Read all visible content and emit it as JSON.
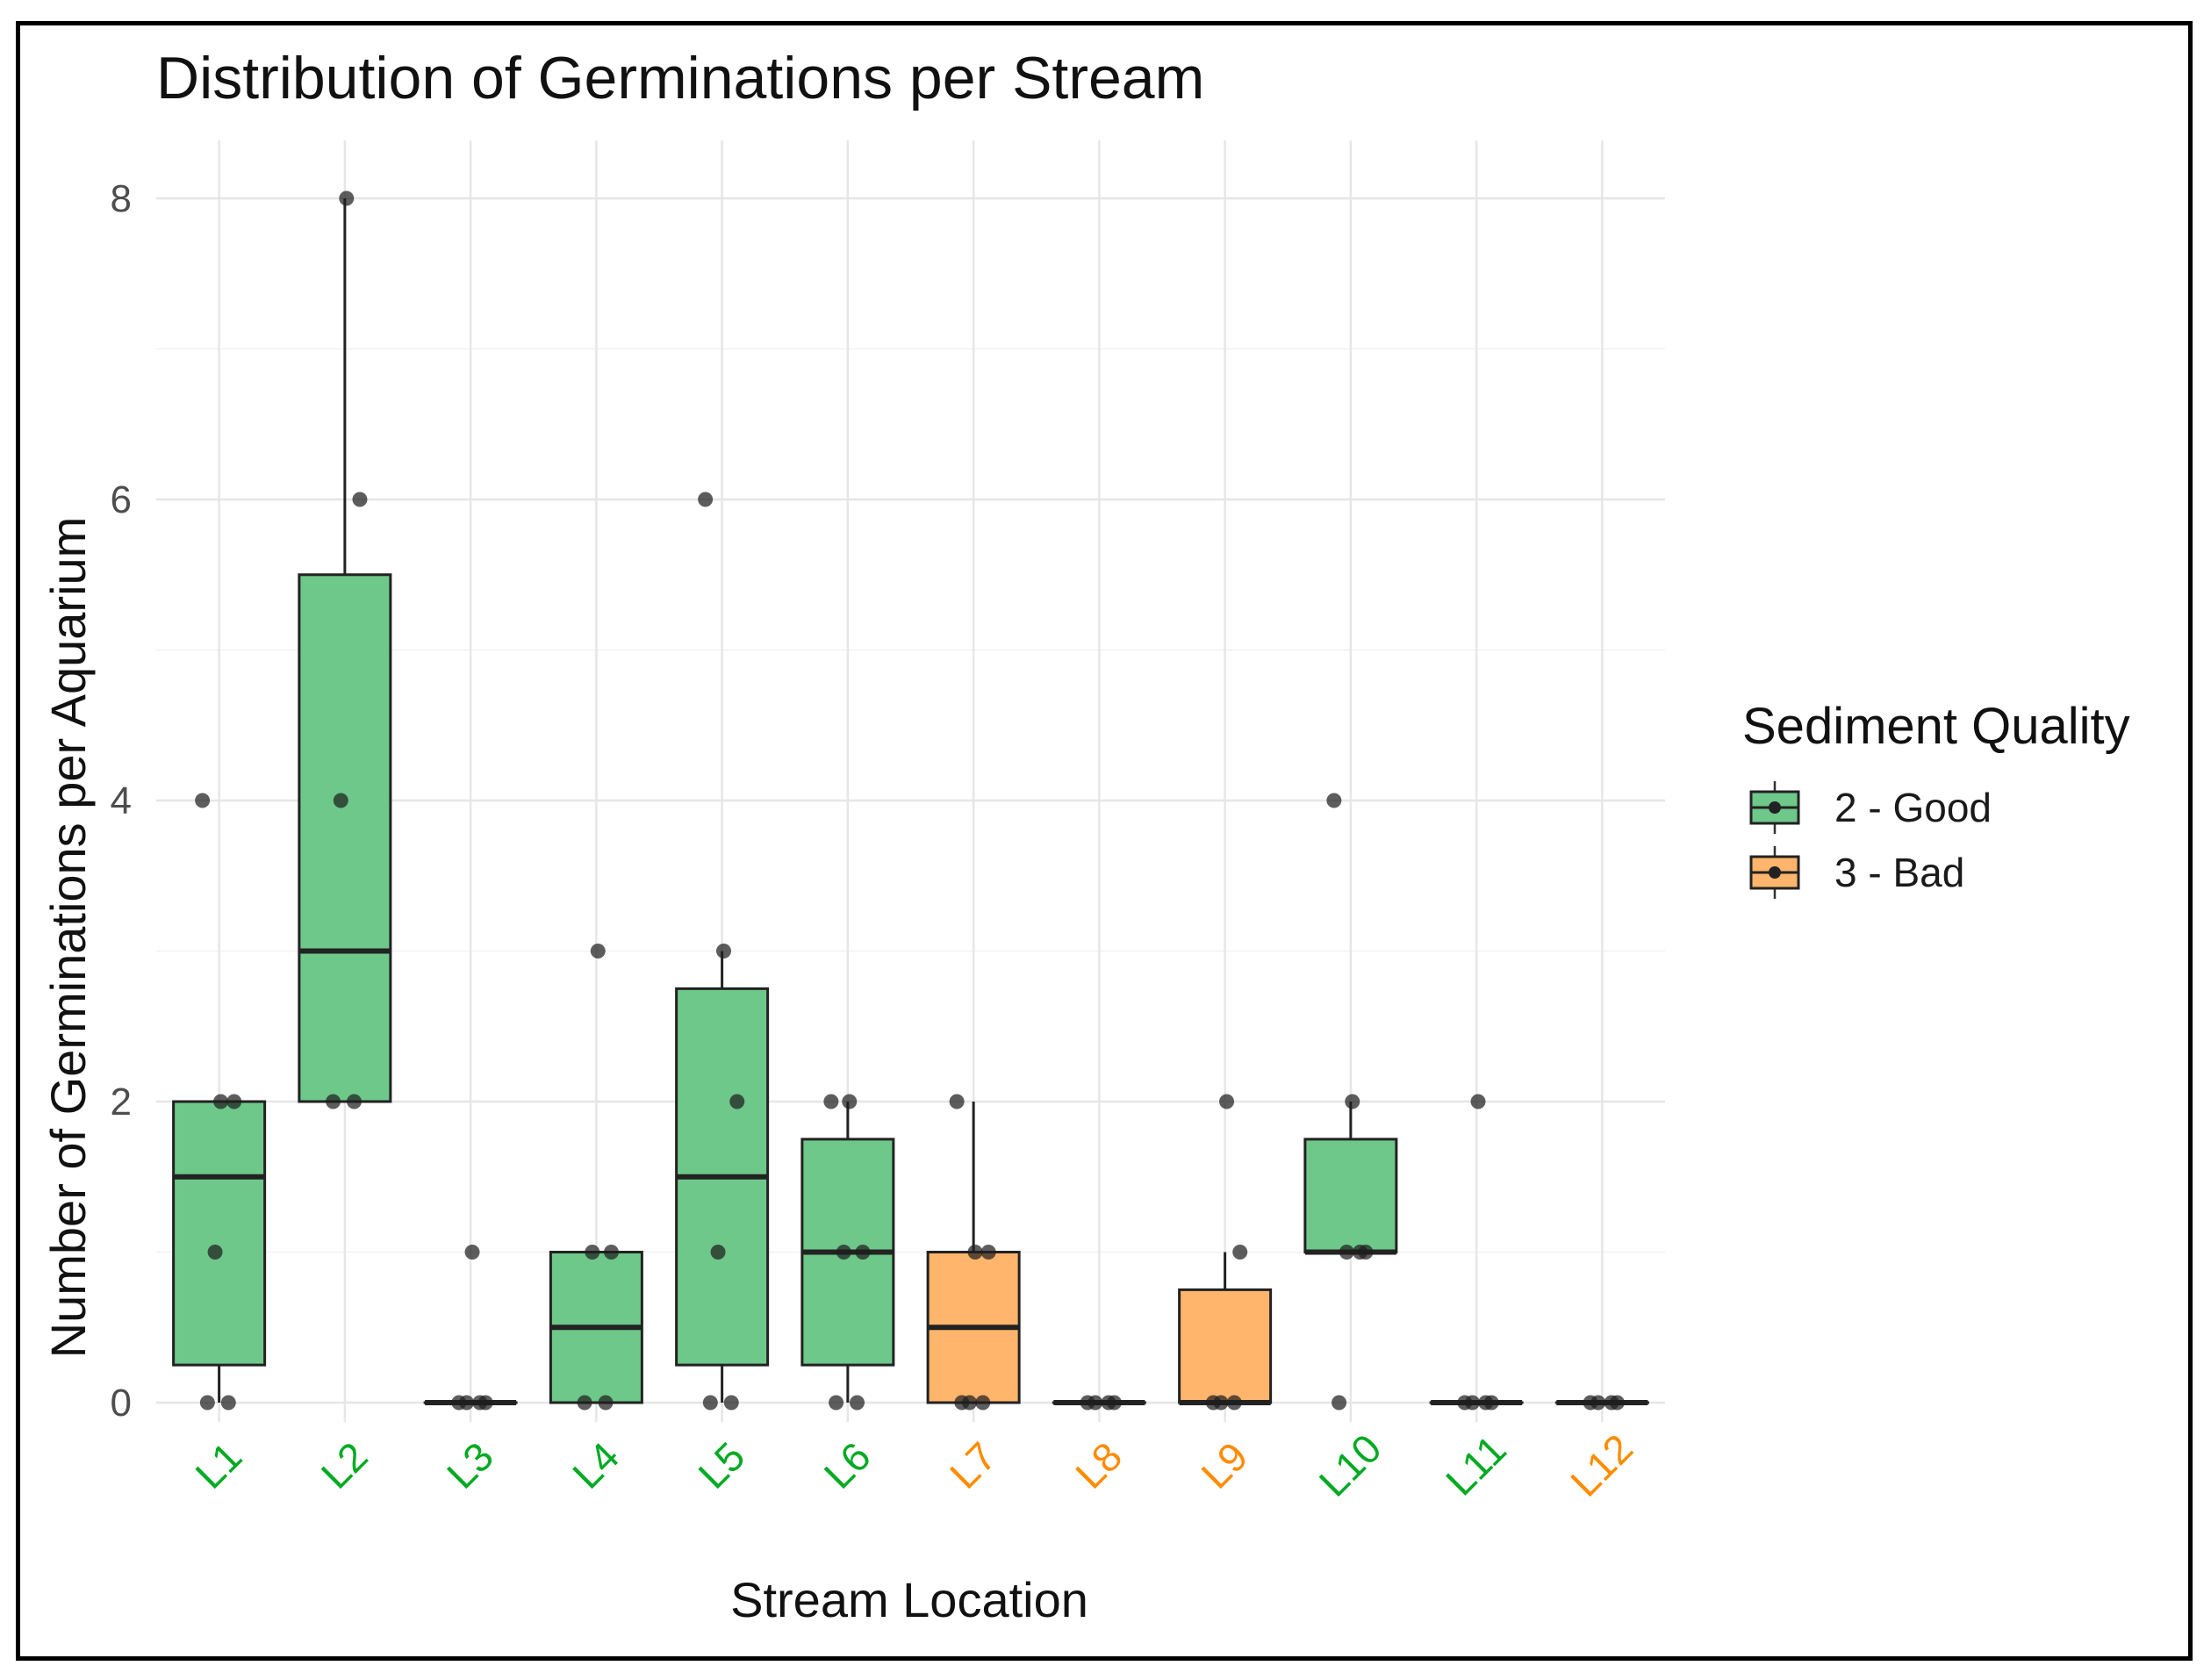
{
  "chart_data": {
    "type": "boxplot",
    "title": "Distribution of Germinations per Stream",
    "xlabel": "Stream Location",
    "ylabel": "Number of Germinations per Aquarium",
    "ylim": [
      -0.4,
      8.4
    ],
    "yticks": [
      0,
      2,
      4,
      6,
      8
    ],
    "grid": true,
    "legend": {
      "title": "Sediment Quality",
      "placement": "right",
      "entries": [
        {
          "key": "good",
          "label": "2 - Good",
          "fill": "#6dc88a",
          "text_color": "#00aa22"
        },
        {
          "key": "bad",
          "label": "3 - Bad",
          "fill": "#ffb56b",
          "text_color": "#ff8c00"
        }
      ]
    },
    "categories": [
      "L1",
      "L2",
      "L3",
      "L4",
      "L5",
      "L6",
      "L7",
      "L8",
      "L9",
      "L10",
      "L11",
      "L12"
    ],
    "boxes": [
      {
        "cat": "L1",
        "quality": "good",
        "q1": 0.25,
        "median": 1.5,
        "q3": 2,
        "whisker_low": 0,
        "whisker_high": 2,
        "points": [
          0,
          0,
          1,
          2,
          2,
          4
        ]
      },
      {
        "cat": "L2",
        "quality": "good",
        "q1": 2,
        "median": 3,
        "q3": 5.5,
        "whisker_low": 2,
        "whisker_high": 8,
        "points": [
          2,
          2,
          4,
          6,
          8
        ]
      },
      {
        "cat": "L3",
        "quality": "good",
        "q1": 0,
        "median": 0,
        "q3": 0,
        "whisker_low": 0,
        "whisker_high": 0,
        "points": [
          0,
          0,
          0,
          0,
          1
        ]
      },
      {
        "cat": "L4",
        "quality": "good",
        "q1": 0,
        "median": 0.5,
        "q3": 1,
        "whisker_low": 0,
        "whisker_high": 1,
        "points": [
          0,
          0,
          1,
          1,
          3
        ]
      },
      {
        "cat": "L5",
        "quality": "good",
        "q1": 0.25,
        "median": 1.5,
        "q3": 2.75,
        "whisker_low": 0,
        "whisker_high": 3,
        "points": [
          0,
          0,
          1,
          2,
          3,
          6
        ]
      },
      {
        "cat": "L6",
        "quality": "good",
        "q1": 0.25,
        "median": 1,
        "q3": 1.75,
        "whisker_low": 0,
        "whisker_high": 2,
        "points": [
          0,
          0,
          1,
          1,
          2,
          2
        ]
      },
      {
        "cat": "L7",
        "quality": "bad",
        "q1": 0,
        "median": 0.5,
        "q3": 1,
        "whisker_low": 0,
        "whisker_high": 2,
        "points": [
          0,
          0,
          0,
          1,
          1,
          2
        ]
      },
      {
        "cat": "L8",
        "quality": "bad",
        "q1": 0,
        "median": 0,
        "q3": 0,
        "whisker_low": 0,
        "whisker_high": 0,
        "points": [
          0,
          0,
          0,
          0
        ]
      },
      {
        "cat": "L9",
        "quality": "bad",
        "q1": 0,
        "median": 0,
        "q3": 0.75,
        "whisker_low": 0,
        "whisker_high": 1,
        "points": [
          0,
          0,
          0,
          1,
          2
        ]
      },
      {
        "cat": "L10",
        "quality": "good",
        "q1": 1,
        "median": 1,
        "q3": 1.75,
        "whisker_low": 1,
        "whisker_high": 2,
        "points": [
          0,
          1,
          1,
          1,
          2,
          4
        ]
      },
      {
        "cat": "L11",
        "quality": "good",
        "q1": 0,
        "median": 0,
        "q3": 0,
        "whisker_low": 0,
        "whisker_high": 0,
        "points": [
          0,
          0,
          0,
          0,
          2
        ]
      },
      {
        "cat": "L12",
        "quality": "bad",
        "q1": 0,
        "median": 0,
        "q3": 0,
        "whisker_low": 0,
        "whisker_high": 0,
        "points": [
          0,
          0,
          0,
          0
        ]
      }
    ]
  }
}
